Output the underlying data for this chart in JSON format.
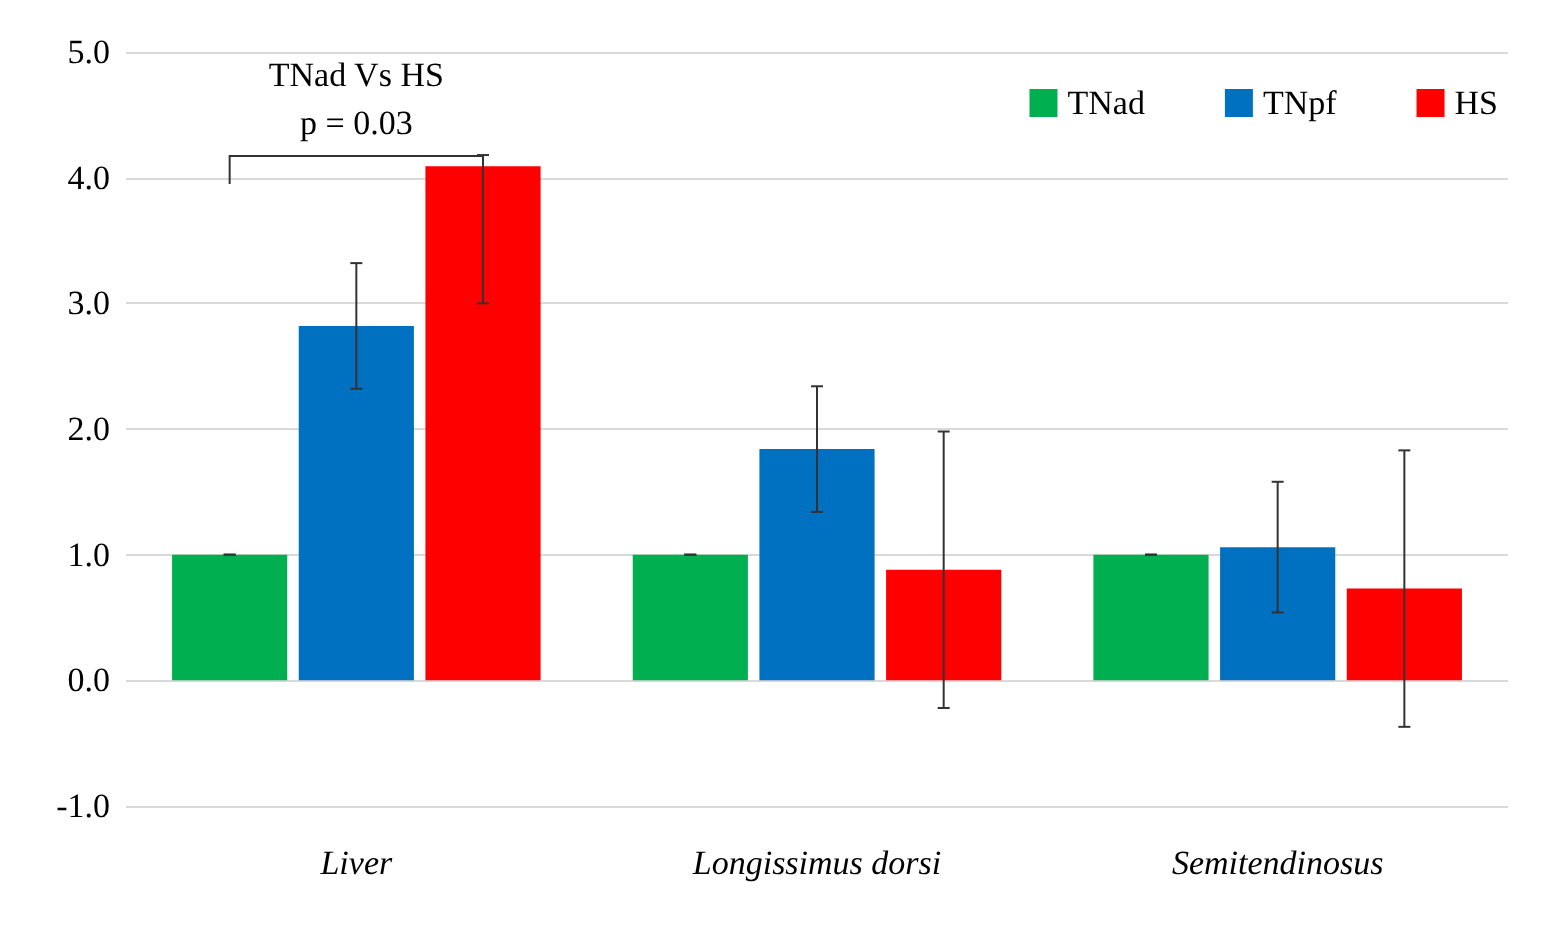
{
  "chart_data": {
    "type": "bar",
    "categories": [
      "Liver",
      "Longissimus dorsi",
      "Semitendinosus"
    ],
    "series": [
      {
        "name": "TNad",
        "color": "#00b050",
        "values": [
          1.0,
          1.0,
          1.0
        ],
        "errors": [
          0,
          0,
          0
        ]
      },
      {
        "name": "TNpf",
        "color": "#0070c0",
        "values": [
          2.82,
          1.84,
          1.06
        ],
        "errors": [
          0.5,
          0.5,
          0.52
        ]
      },
      {
        "name": "HS",
        "color": "#ff0000",
        "values": [
          4.09,
          0.88,
          0.73
        ],
        "errors": [
          [
            3.0,
            4.18
          ],
          1.1,
          1.1
        ]
      }
    ],
    "ylim": [
      -1,
      5
    ],
    "yticks": [
      {
        "value": -1,
        "label": "-1.0"
      },
      {
        "value": 0,
        "label": "0.0"
      },
      {
        "value": 1,
        "label": "1.0"
      },
      {
        "value": 2,
        "label": "2.0"
      },
      {
        "value": 3,
        "label": "3.0"
      },
      {
        "value": 4,
        "label": "4.0"
      },
      {
        "value": 5,
        "label": "5.0"
      }
    ],
    "annotations": [
      "TNad Vs HS",
      "p = 0.03"
    ],
    "grid": "y",
    "legend": "top right"
  }
}
